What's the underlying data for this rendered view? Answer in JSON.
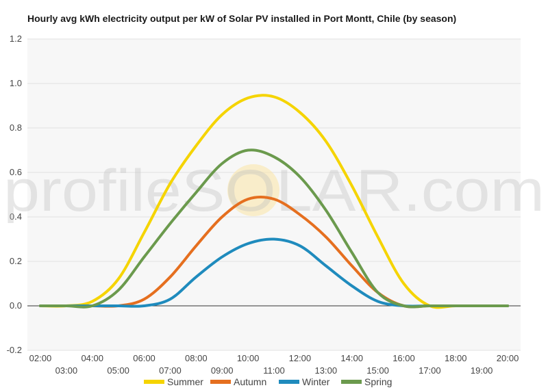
{
  "chart_data": {
    "type": "line",
    "title": "Hourly avg kWh electricity output per kW of Solar PV installed in Port Montt, Chile (by season)",
    "xlabel": "",
    "ylabel": "",
    "ylim": [
      -0.2,
      1.2
    ],
    "yticks": [
      "-0.2",
      "0.0",
      "0.2",
      "0.4",
      "0.6",
      "0.8",
      "1.0",
      "1.2"
    ],
    "yticks_values": [
      -0.2,
      0.0,
      0.2,
      0.4,
      0.6,
      0.8,
      1.0,
      1.2
    ],
    "xrange": [
      1.5,
      20.5
    ],
    "x": [
      2,
      3,
      4,
      5,
      6,
      7,
      8,
      9,
      10,
      11,
      12,
      13,
      14,
      15,
      16,
      17,
      18,
      19,
      20
    ],
    "xticks_upper": [
      "02:00",
      "04:00",
      "06:00",
      "08:00",
      "10:00",
      "12:00",
      "14:00",
      "16:00",
      "18:00",
      "20:00"
    ],
    "xticks_upper_values": [
      2,
      4,
      6,
      8,
      10,
      12,
      14,
      16,
      18,
      20
    ],
    "xticks_lower": [
      "03:00",
      "05:00",
      "07:00",
      "09:00",
      "11:00",
      "13:00",
      "15:00",
      "17:00",
      "19:00"
    ],
    "xticks_lower_values": [
      3,
      5,
      7,
      9,
      11,
      13,
      15,
      17,
      19
    ],
    "grid": true,
    "legend_position": "bottom",
    "series": [
      {
        "name": "Summer",
        "color": "#f5d400",
        "values": [
          0.0,
          0.0,
          0.02,
          0.12,
          0.33,
          0.55,
          0.72,
          0.86,
          0.935,
          0.94,
          0.87,
          0.74,
          0.54,
          0.31,
          0.1,
          0.0,
          0.0,
          0.0,
          0.0
        ]
      },
      {
        "name": "Autumn",
        "color": "#e56f1f",
        "values": [
          0.0,
          0.0,
          0.0,
          0.0,
          0.03,
          0.13,
          0.27,
          0.4,
          0.48,
          0.48,
          0.41,
          0.31,
          0.18,
          0.06,
          0.0,
          0.0,
          0.0,
          0.0,
          0.0
        ]
      },
      {
        "name": "Winter",
        "color": "#1f8bbd",
        "values": [
          0.0,
          0.0,
          0.0,
          0.0,
          0.0,
          0.03,
          0.13,
          0.22,
          0.28,
          0.3,
          0.27,
          0.18,
          0.09,
          0.02,
          0.0,
          0.0,
          0.0,
          0.0,
          0.0
        ]
      },
      {
        "name": "Spring",
        "color": "#6b9a4d",
        "values": [
          0.0,
          0.0,
          0.0,
          0.07,
          0.22,
          0.37,
          0.51,
          0.64,
          0.7,
          0.67,
          0.58,
          0.43,
          0.24,
          0.06,
          0.0,
          0.0,
          0.0,
          0.0,
          0.0
        ]
      }
    ]
  },
  "watermark": {
    "text": "profileSOLAR.com"
  }
}
